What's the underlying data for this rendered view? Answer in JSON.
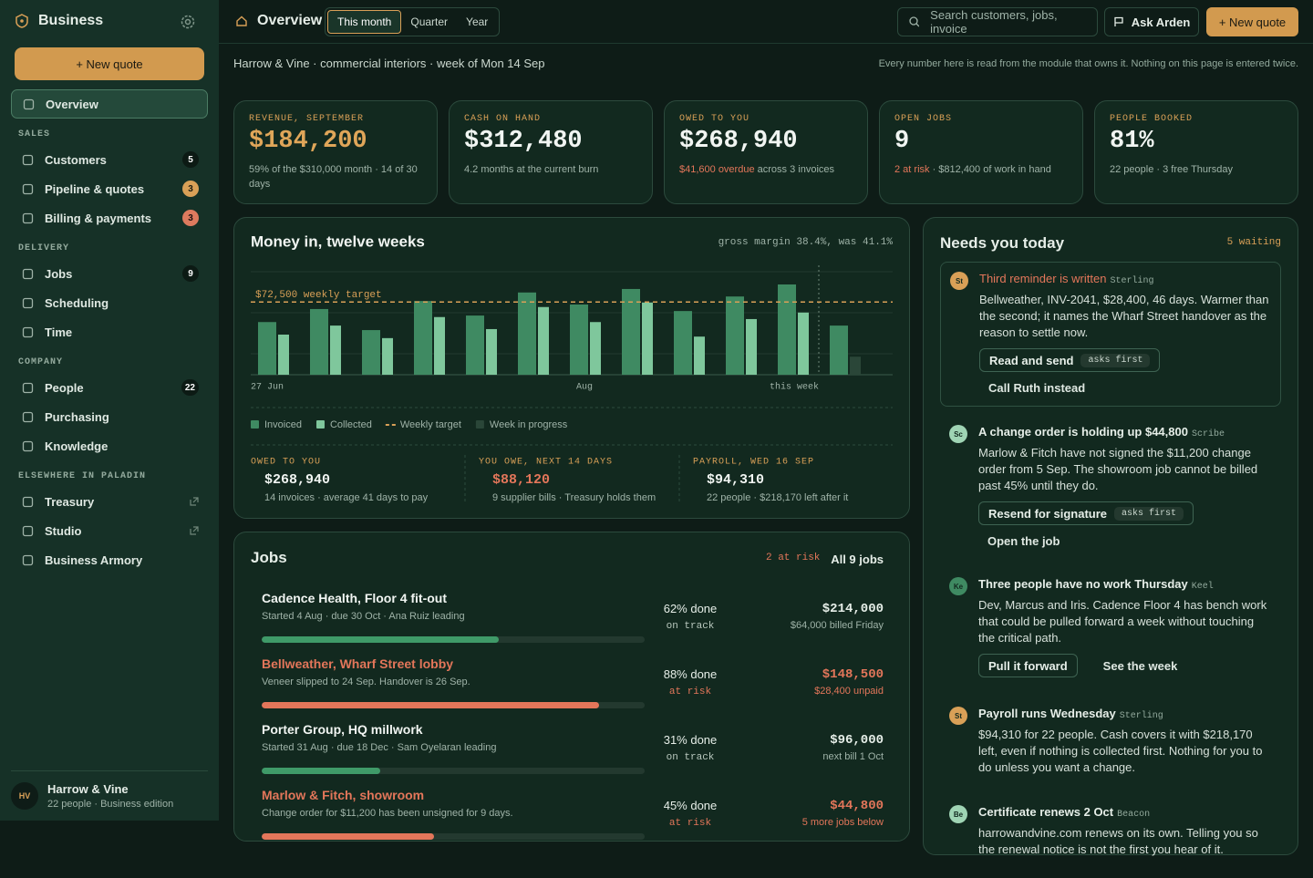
{
  "sidebar": {
    "brand": "Business",
    "new_quote": "+ New quote",
    "overview": "Overview",
    "sections": [
      {
        "title": "SALES",
        "items": [
          {
            "label": "Customers",
            "badge": "5",
            "tone": "plain"
          },
          {
            "label": "Pipeline & quotes",
            "badge": "3",
            "tone": "warn"
          },
          {
            "label": "Billing & payments",
            "badge": "3",
            "tone": "alert"
          }
        ]
      },
      {
        "title": "DELIVERY",
        "items": [
          {
            "label": "Jobs",
            "badge": "9",
            "tone": "plain"
          },
          {
            "label": "Scheduling"
          },
          {
            "label": "Time"
          }
        ]
      },
      {
        "title": "COMPANY",
        "items": [
          {
            "label": "People",
            "badge": "22",
            "tone": "plain"
          },
          {
            "label": "Purchasing"
          },
          {
            "label": "Knowledge"
          }
        ]
      },
      {
        "title": "ELSEWHERE IN PALADIN",
        "items": [
          {
            "label": "Treasury",
            "external": true
          },
          {
            "label": "Studio",
            "external": true
          },
          {
            "label": "Business Armory"
          }
        ]
      }
    ],
    "footer": {
      "initials": "HV",
      "name": "Harrow & Vine",
      "detail": "22 people · Business edition"
    }
  },
  "topbar": {
    "title": "Overview",
    "tabs": [
      "This month",
      "Quarter",
      "Year"
    ],
    "active_tab": 0,
    "search": "Search customers, jobs, invoice",
    "ask": "Ask Arden",
    "new_quote": "+ New quote"
  },
  "context": {
    "line": "Harrow & Vine · commercial interiors · week of Mon 14 Sep",
    "note": "Every number here is read from the module that owns it. Nothing on this page is entered twice."
  },
  "kpis": [
    {
      "label": "REVENUE, SEPTEMBER",
      "value": "$184,200",
      "accent": true,
      "note": "59% of the $310,000 month · 14 of 30 days"
    },
    {
      "label": "CASH ON HAND",
      "value": "$312,480",
      "note": "4.2 months at the current burn"
    },
    {
      "label": "OWED TO YOU",
      "value": "$268,940",
      "highlight": "$41,600 overdue",
      "note": " across 3 invoices"
    },
    {
      "label": "OPEN JOBS",
      "value": "9",
      "highlight": "2 at risk",
      "note": " · $812,400 of work in hand"
    },
    {
      "label": "PEOPLE BOOKED",
      "value": "81%",
      "note": "22 people · 3 free Thursday"
    }
  ],
  "chart_data": {
    "type": "bar",
    "title": "Money in, twelve weeks",
    "note": "gross margin 38.4%, was 41.1%",
    "categories": [
      "27 Jun",
      null,
      null,
      null,
      null,
      null,
      "Aug",
      null,
      null,
      null,
      null,
      "this week"
    ],
    "series": [
      {
        "name": "Invoiced",
        "color": "#3f8a62",
        "values": [
          52500,
          65500,
          44500,
          73500,
          59000,
          82000,
          70000,
          85500,
          63500,
          78000,
          90000,
          49000
        ]
      },
      {
        "name": "Collected",
        "color": "#7fc79c",
        "values": [
          40000,
          49000,
          36500,
          57500,
          45500,
          67500,
          52500,
          72000,
          38000,
          55500,
          62000,
          null
        ]
      },
      {
        "name": "Week in progress",
        "color": "#2a4638",
        "values": [
          null,
          null,
          null,
          null,
          null,
          null,
          null,
          null,
          null,
          null,
          null,
          18000
        ]
      }
    ],
    "target": {
      "value": 72500,
      "label": "$72,500 weekly target",
      "legend": "Weekly target",
      "color": "#d9a057"
    },
    "ylim": [
      0,
      100000
    ],
    "summary": [
      {
        "label": "OWED TO YOU",
        "value": "$268,940",
        "note": "14 invoices · average 41 days to pay"
      },
      {
        "label": "YOU OWE, NEXT 14 DAYS",
        "value": "$88,120",
        "alert": true,
        "note": "9 supplier bills · Treasury holds them"
      },
      {
        "label": "PAYROLL, WED 16 SEP",
        "value": "$94,310",
        "note": "22 people · $218,170 left after it"
      }
    ]
  },
  "jobs": {
    "title": "Jobs",
    "risk": "2 at risk",
    "all": "All 9 jobs",
    "rows": [
      {
        "name": "Cadence Health, Floor 4 fit-out",
        "sub": "Started 4 Aug · due 30 Oct · Ana Ruiz leading",
        "progress": 62,
        "progress_label": "62% done",
        "status": "on track",
        "amount": "$214,000",
        "amount_note": "$64,000 billed Friday",
        "risk": false
      },
      {
        "name": "Bellweather, Wharf Street lobby",
        "sub": "Veneer slipped to 24 Sep. Handover is 26 Sep.",
        "progress": 88,
        "progress_label": "88% done",
        "status": "at risk",
        "amount": "$148,500",
        "amount_note": "$28,400 unpaid",
        "risk": true
      },
      {
        "name": "Porter Group, HQ millwork",
        "sub": "Started 31 Aug · due 18 Dec · Sam Oyelaran leading",
        "progress": 31,
        "progress_label": "31% done",
        "status": "on track",
        "amount": "$96,000",
        "amount_note": "next bill 1 Oct",
        "risk": false
      },
      {
        "name": "Marlow & Fitch, showroom",
        "sub": "Change order for $11,200 has been unsigned for 9 days.",
        "progress": 45,
        "progress_label": "45% done",
        "status": "at risk",
        "amount": "$44,800",
        "amount_note": "5 more jobs below",
        "risk": true
      }
    ]
  },
  "needs": {
    "title": "Needs you today",
    "waiting": "5 waiting",
    "items": [
      {
        "initials": "St",
        "avatar_color": "#d9a057",
        "title": "Third reminder is written",
        "source": "Sterling",
        "urgent": true,
        "body": "Bellweather, INV-2041, $28,400, 46 days. Warmer than the second; it names the Wharf Street handover as the reason to settle now.",
        "actions": [
          {
            "label": "Read and send",
            "tag": "asks first"
          },
          {
            "label": "Call Ruth instead"
          }
        ]
      },
      {
        "initials": "Sc",
        "avatar_color": "#9fd4b4",
        "title": "A change order is holding up $44,800",
        "source": "Scribe",
        "body": "Marlow & Fitch have not signed the $11,200 change order from 5 Sep. The showroom job cannot be billed past 45% until they do.",
        "actions": [
          {
            "label": "Resend for signature",
            "tag": "asks first"
          },
          {
            "label": "Open the job"
          }
        ]
      },
      {
        "initials": "Ke",
        "avatar_color": "#3f8a62",
        "title": "Three people have no work Thursday",
        "source": "Keel",
        "body": "Dev, Marcus and Iris. Cadence Floor 4 has bench work that could be pulled forward a week without touching the critical path.",
        "actions": [
          {
            "label": "Pull it forward"
          },
          {
            "label": "See the week"
          }
        ]
      },
      {
        "initials": "St",
        "avatar_color": "#d9a057",
        "title": "Payroll runs Wednesday",
        "source": "Sterling",
        "body": "$94,310 for 22 people. Cash covers it with $218,170 left, even if nothing is collected first. Nothing for you to do unless you want a change.",
        "actions": []
      },
      {
        "initials": "Be",
        "avatar_color": "#9fd4b4",
        "title": "Certificate renews 2 Oct",
        "source": "Beacon",
        "body": "harrowandvine.com renews on its own. Telling you so the renewal notice is not the first you hear of it.",
        "actions": []
      }
    ]
  }
}
